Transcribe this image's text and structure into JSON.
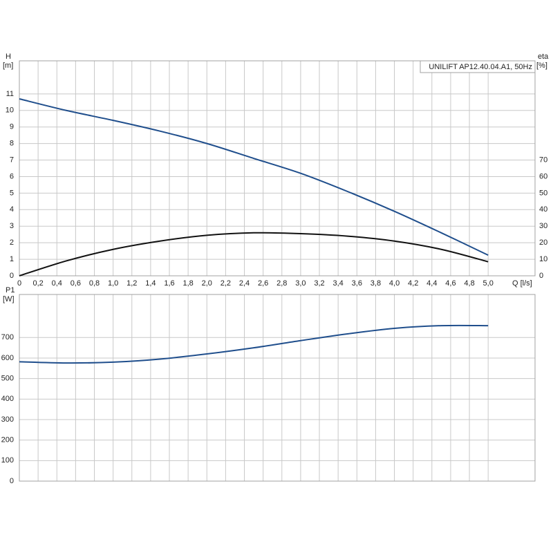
{
  "chart_data": [
    {
      "type": "line",
      "title": "UNILIFT AP12.40.04.A1, 50Hz",
      "ylabel": "H",
      "yunit": "[m]",
      "y2label": "eta",
      "y2unit": "[%]",
      "xlabel": "Q [l/s]",
      "grid": true,
      "x": [
        0,
        0.5,
        1.0,
        1.5,
        2.0,
        2.5,
        3.0,
        3.5,
        4.0,
        4.5,
        5.0
      ],
      "series": [
        {
          "color": "#1f4e8c",
          "values": [
            10.7,
            10.0,
            9.4,
            8.75,
            8.0,
            7.1,
            6.2,
            5.1,
            3.9,
            2.6,
            1.25
          ]
        },
        {
          "color": "#111111",
          "axis": "y2",
          "values": [
            0,
            9,
            16,
            21,
            24.5,
            26,
            25.5,
            24,
            21,
            16,
            8.5
          ]
        }
      ],
      "xlim": [
        0,
        5.5
      ],
      "xticks": [
        0,
        {
          "value": 0.2,
          "label": "0,2"
        },
        {
          "value": 0.4,
          "label": "0,4"
        },
        {
          "value": 0.6,
          "label": "0,6"
        },
        {
          "value": 0.8,
          "label": "0,8"
        },
        {
          "value": 1.0,
          "label": "1,0"
        },
        {
          "value": 1.2,
          "label": "1,2"
        },
        {
          "value": 1.4,
          "label": "1,4"
        },
        {
          "value": 1.6,
          "label": "1,6"
        },
        {
          "value": 1.8,
          "label": "1,8"
        },
        {
          "value": 2.0,
          "label": "2,0"
        },
        {
          "value": 2.2,
          "label": "2,2"
        },
        {
          "value": 2.4,
          "label": "2,4"
        },
        {
          "value": 2.6,
          "label": "2,6"
        },
        {
          "value": 2.8,
          "label": "2,8"
        },
        {
          "value": 3.0,
          "label": "3,0"
        },
        {
          "value": 3.2,
          "label": "3,2"
        },
        {
          "value": 3.4,
          "label": "3,4"
        },
        {
          "value": 3.6,
          "label": "3,6"
        },
        {
          "value": 3.8,
          "label": "3,8"
        },
        {
          "value": 4.0,
          "label": "4,0"
        },
        {
          "value": 4.2,
          "label": "4,2"
        },
        {
          "value": 4.4,
          "label": "4,4"
        },
        {
          "value": 4.6,
          "label": "4,6"
        },
        {
          "value": 4.8,
          "label": "4,8"
        },
        {
          "value": 5.0,
          "label": "5,0"
        }
      ],
      "ylim": [
        0,
        13
      ],
      "yticks": [
        0,
        1,
        2,
        3,
        4,
        5,
        6,
        7,
        8,
        9,
        10,
        11
      ],
      "y2lim": [
        0,
        130
      ],
      "y2ticks": [
        0,
        10,
        20,
        30,
        40,
        50,
        60,
        70
      ]
    },
    {
      "type": "line",
      "ylabel": "P1",
      "yunit": "[W]",
      "grid": true,
      "x": [
        0,
        0.5,
        1.0,
        1.5,
        2.0,
        2.5,
        3.0,
        3.5,
        4.0,
        4.5,
        5.0
      ],
      "series": [
        {
          "color": "#1f4e8c",
          "values": [
            582,
            576,
            580,
            595,
            620,
            650,
            685,
            718,
            745,
            758,
            758
          ]
        }
      ],
      "xlim": [
        0,
        5.5
      ],
      "ylim": [
        0,
        910
      ],
      "yticks": [
        0,
        100,
        200,
        300,
        400,
        500,
        600,
        700
      ]
    }
  ]
}
